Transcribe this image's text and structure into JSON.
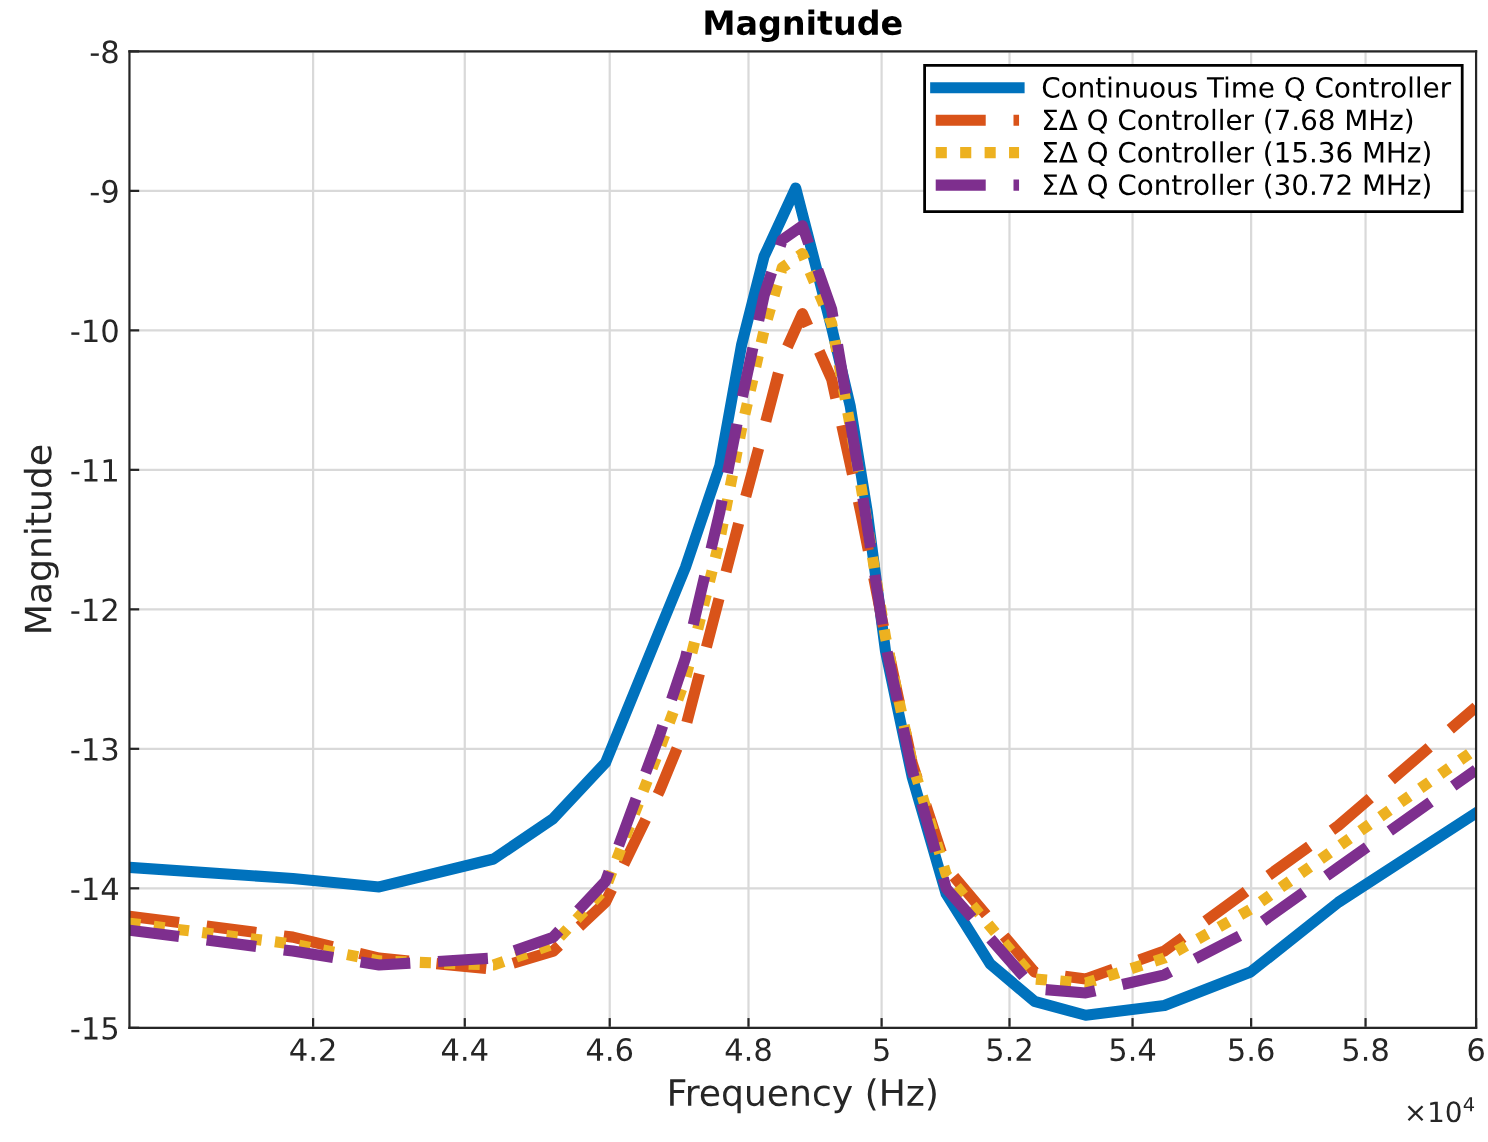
{
  "chart_data": {
    "type": "line",
    "title": "Magnitude",
    "xlabel": "Frequency (Hz)",
    "ylabel": "Magnitude",
    "log": "x",
    "xlim": [
      3.97,
      6
    ],
    "xticks": [
      4.2,
      4.4,
      4.6,
      4.8,
      5,
      5.2,
      5.4,
      5.6,
      5.8,
      6
    ],
    "ylim": [
      -15,
      -8
    ],
    "yticks": [
      -15,
      -14,
      -13,
      -12,
      -11,
      -10,
      -9,
      -8
    ],
    "annotations": [
      "×10$^{4}$"
    ],
    "grid": true,
    "legend": "top right",
    "marker": "none",
    "series": [
      {
        "name": "Continuous Time Q Controller",
        "color": "#0072bd",
        "line_style": "solid",
        "x": [
          3.97,
          4.174,
          4.286,
          4.439,
          4.521,
          4.594,
          4.671,
          4.708,
          4.758,
          4.79,
          4.823,
          4.87,
          4.924,
          4.952,
          4.978,
          5.006,
          5.047,
          5.1,
          5.169,
          5.24,
          5.323,
          5.453,
          5.599,
          5.752,
          6
        ],
        "values": [
          -13.85,
          -13.93,
          -13.99,
          -13.79,
          -13.5,
          -13.1,
          -12.15,
          -11.7,
          -10.97,
          -10.1,
          -9.47,
          -8.98,
          -9.98,
          -10.54,
          -11.3,
          -12.3,
          -13.2,
          -14.04,
          -14.54,
          -14.81,
          -14.91,
          -14.84,
          -14.6,
          -14.1,
          -13.46
        ]
      },
      {
        "name": "ΣΔ Q Controller (7.68 MHz)",
        "color": "#d95319",
        "line_style": "dashed",
        "x": [
          3.97,
          4.174,
          4.286,
          4.439,
          4.521,
          4.594,
          4.671,
          4.708,
          4.758,
          4.79,
          4.823,
          4.85,
          4.88,
          4.924,
          4.968,
          5.006,
          5.047,
          5.1,
          5.24,
          5.323,
          5.453,
          5.599,
          5.752,
          6
        ],
        "values": [
          -14.2,
          -14.35,
          -14.5,
          -14.58,
          -14.45,
          -14.1,
          -13.3,
          -12.85,
          -11.9,
          -11.3,
          -10.7,
          -10.2,
          -9.88,
          -10.35,
          -11.3,
          -12.2,
          -13.1,
          -13.85,
          -14.6,
          -14.65,
          -14.45,
          -14.0,
          -13.55,
          -12.7
        ]
      },
      {
        "name": "ΣΔ Q Controller (15.36 MHz)",
        "color": "#edb120",
        "line_style": "dotted",
        "x": [
          3.97,
          4.174,
          4.286,
          4.439,
          4.521,
          4.594,
          4.671,
          4.708,
          4.758,
          4.79,
          4.823,
          4.85,
          4.88,
          4.924,
          4.968,
          5.006,
          5.047,
          5.1,
          5.24,
          5.323,
          5.453,
          5.599,
          5.752,
          6
        ],
        "values": [
          -14.25,
          -14.4,
          -14.52,
          -14.55,
          -14.4,
          -14.0,
          -13.0,
          -12.5,
          -11.5,
          -10.7,
          -10.0,
          -9.55,
          -9.45,
          -9.95,
          -11.1,
          -12.2,
          -13.1,
          -13.9,
          -14.65,
          -14.68,
          -14.5,
          -14.15,
          -13.7,
          -13.0
        ]
      },
      {
        "name": "ΣΔ Q Controller (30.72 MHz)",
        "color": "#7e2f8e",
        "line_style": "dashed",
        "x": [
          3.97,
          4.174,
          4.286,
          4.439,
          4.521,
          4.594,
          4.671,
          4.708,
          4.758,
          4.79,
          4.823,
          4.85,
          4.88,
          4.924,
          4.968,
          5.006,
          5.047,
          5.1,
          5.24,
          5.323,
          5.453,
          5.599,
          5.752,
          6
        ],
        "values": [
          -14.3,
          -14.45,
          -14.55,
          -14.5,
          -14.35,
          -13.95,
          -12.9,
          -12.35,
          -11.3,
          -10.5,
          -9.75,
          -9.35,
          -9.25,
          -9.85,
          -11.1,
          -12.25,
          -13.15,
          -14.0,
          -14.72,
          -14.75,
          -14.62,
          -14.3,
          -13.85,
          -13.15
        ]
      }
    ]
  }
}
